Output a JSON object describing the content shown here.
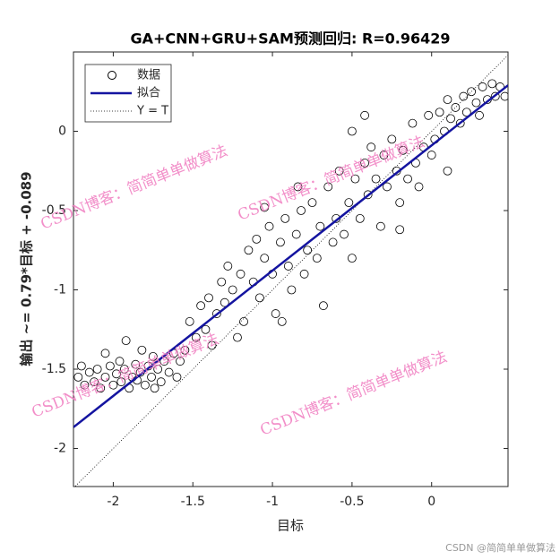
{
  "chart_data": {
    "type": "scatter",
    "title": "GA+CNN+GRU+SAM预测回归: R=0.96429",
    "x_label": "目标",
    "y_label": "输出 ~= 0.79*目标 + -0.089",
    "xlim": [
      -2.25,
      0.48
    ],
    "ylim": [
      -2.24,
      0.5
    ],
    "xticks": [
      -2,
      -1.5,
      -1,
      -0.5,
      0
    ],
    "yticks": [
      -2,
      -1.5,
      -1,
      -0.5,
      0
    ],
    "legend": "northwest",
    "series": [
      {
        "name": "数据",
        "kind": "scatter",
        "color": "#000000",
        "x": [
          -2.22,
          -2.18,
          -2.15,
          -2.12,
          -2.1,
          -2.08,
          -2.05,
          -2.02,
          -2.0,
          -1.98,
          -1.96,
          -1.95,
          -1.93,
          -1.9,
          -1.88,
          -1.86,
          -1.85,
          -1.83,
          -1.8,
          -1.78,
          -1.76,
          -1.75,
          -1.72,
          -1.7,
          -1.68,
          -1.65,
          -1.62,
          -1.6,
          -1.58,
          -1.55,
          -1.92,
          -2.05,
          -1.82,
          -1.74,
          -2.2,
          -1.52,
          -1.48,
          -1.45,
          -1.42,
          -1.4,
          -1.35,
          -1.32,
          -1.3,
          -1.28,
          -1.25,
          -1.2,
          -1.18,
          -1.15,
          -1.12,
          -1.1,
          -1.08,
          -1.05,
          -1.02,
          -1.0,
          -0.98,
          -0.95,
          -0.92,
          -0.9,
          -0.88,
          -0.85,
          -0.82,
          -0.8,
          -0.78,
          -0.75,
          -0.72,
          -0.7,
          -0.68,
          -0.65,
          -0.62,
          -0.6,
          -0.58,
          -0.55,
          -0.52,
          -0.5,
          -0.48,
          -1.22,
          -1.38,
          -0.94,
          -1.05,
          -0.84,
          -0.45,
          -0.42,
          -0.4,
          -0.38,
          -0.35,
          -0.32,
          -0.3,
          -0.28,
          -0.25,
          -0.22,
          -0.2,
          -0.18,
          -0.15,
          -0.12,
          -0.1,
          -0.08,
          -0.05,
          -0.02,
          0.0,
          0.02,
          0.05,
          0.08,
          0.1,
          0.12,
          0.15,
          0.18,
          0.2,
          0.22,
          0.25,
          0.28,
          0.3,
          0.32,
          0.35,
          0.38,
          0.4,
          0.43,
          0.46,
          -0.42,
          -0.2,
          0.1,
          -0.5
        ],
        "values": [
          -1.55,
          -1.6,
          -1.52,
          -1.58,
          -1.5,
          -1.62,
          -1.55,
          -1.48,
          -1.6,
          -1.53,
          -1.45,
          -1.58,
          -1.5,
          -1.62,
          -1.55,
          -1.47,
          -1.57,
          -1.52,
          -1.6,
          -1.48,
          -1.55,
          -1.42,
          -1.5,
          -1.58,
          -1.45,
          -1.52,
          -1.4,
          -1.55,
          -1.45,
          -1.38,
          -1.32,
          -1.4,
          -1.38,
          -1.62,
          -1.48,
          -1.2,
          -1.3,
          -1.1,
          -1.25,
          -1.05,
          -1.15,
          -0.95,
          -1.08,
          -0.85,
          -1.0,
          -0.9,
          -1.2,
          -0.75,
          -0.95,
          -0.68,
          -1.05,
          -0.8,
          -0.6,
          -0.9,
          -1.15,
          -0.7,
          -0.55,
          -0.85,
          -1.0,
          -0.65,
          -0.5,
          -0.9,
          -0.75,
          -0.45,
          -0.8,
          -0.6,
          -1.1,
          -0.35,
          -0.7,
          -0.55,
          -0.25,
          -0.65,
          -0.45,
          -0.8,
          -0.3,
          -1.3,
          -1.35,
          -1.2,
          -0.48,
          -0.35,
          -0.55,
          -0.2,
          -0.4,
          -0.1,
          -0.3,
          -0.6,
          -0.15,
          -0.35,
          -0.05,
          -0.25,
          -0.45,
          -0.12,
          -0.3,
          0.05,
          -0.2,
          -0.35,
          -0.1,
          0.1,
          -0.15,
          -0.05,
          0.12,
          0.0,
          0.2,
          0.08,
          0.15,
          0.05,
          0.22,
          0.12,
          0.25,
          0.18,
          0.1,
          0.28,
          0.2,
          0.3,
          0.22,
          0.28,
          0.22,
          0.1,
          -0.62,
          -0.25,
          0.0
        ]
      },
      {
        "name": "拟合",
        "kind": "line",
        "color": "#1414a0",
        "x": [
          -2.25,
          0.48
        ],
        "values": [
          -1.866,
          0.29
        ]
      },
      {
        "name": "Y = T",
        "kind": "dotted",
        "color": "#000000",
        "x": [
          -2.25,
          0.48
        ],
        "values": [
          -2.25,
          0.48
        ]
      }
    ],
    "watermarks": [
      "CSDN博客：简简单单做算法",
      "CSDN博客：简简单单做算法",
      "CSDN博客：简简单单做算法",
      "CSDN博客：简简单单做算法"
    ],
    "footer": "CSDN @简简单单做算法"
  }
}
